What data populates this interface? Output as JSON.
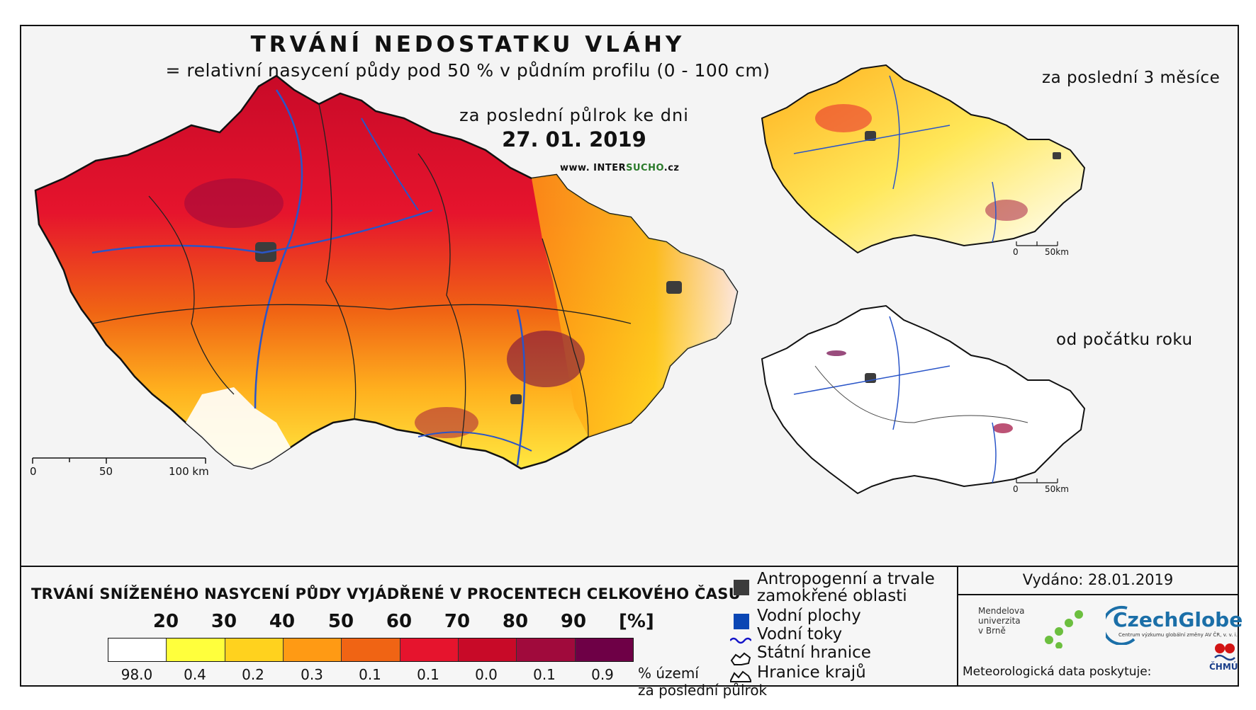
{
  "header": {
    "title": "TRVÁNÍ NEDOSTATKU VLÁHY",
    "subtitle": "= relativní nasycení půdy pod 50 % v půdním profilu (0 - 100 cm)",
    "period": "za poslední půlrok ke dni",
    "date": "27. 01. 2019",
    "site_prefix": "www. INTER",
    "site_highlight": "SUCHO",
    "site_suffix": ".cz"
  },
  "main_map": {
    "scale": {
      "zero": "0",
      "mid": "50",
      "end": "100 km"
    }
  },
  "insets": [
    {
      "label": "za poslední 3 měsíce",
      "scale": {
        "zero": "0",
        "end": "50km"
      }
    },
    {
      "label": "od počátku roku",
      "scale": {
        "zero": "0",
        "end": "50km"
      }
    }
  ],
  "legend": {
    "title": "TRVÁNÍ SNÍŽENÉHO NASYCENÍ PŮDY VYJÁDŘENÉ V PROCENTECH CELKOVÉHO ČASU",
    "ticks": [
      "20",
      "30",
      "40",
      "50",
      "60",
      "70",
      "80",
      "90"
    ],
    "unit": "[%]",
    "colors": [
      "#ffffff",
      "#ffff3c",
      "#ffd21e",
      "#ff9a14",
      "#f06414",
      "#e6142d",
      "#c80a28",
      "#a00a3c",
      "#6e0046"
    ],
    "percentages": [
      "98.0",
      "0.4",
      "0.2",
      "0.3",
      "0.1",
      "0.1",
      "0.0",
      "0.1",
      "0.9"
    ],
    "pct_caption_line1": "% území",
    "pct_caption_line2": "za poslední půlrok"
  },
  "symbols": {
    "anthropogenic_line1": "Antropogenní a trvale",
    "anthropogenic_line2": "zamokřené oblasti",
    "water_bodies": "Vodní plochy",
    "water_courses": "Vodní toky",
    "state_border": "Státní hranice",
    "regional_border": "Hranice krajů",
    "anthropogenic_color": "#3c3c3c",
    "water_color": "#0a46b4",
    "river_color": "#1414c8"
  },
  "credits": {
    "issued": "Vydáno: 28.01.2019",
    "mendel_line1": "Mendelova",
    "mendel_line2": "univerzita",
    "mendel_line3": "v Brně",
    "czechglobe": "CzechGlobe",
    "czechglobe_sub": "Centrum výzkumu globální změny AV ČR, v. v. i.",
    "met_data": "Meteorologická data poskytuje:",
    "chmu": "ČHMÚ"
  }
}
